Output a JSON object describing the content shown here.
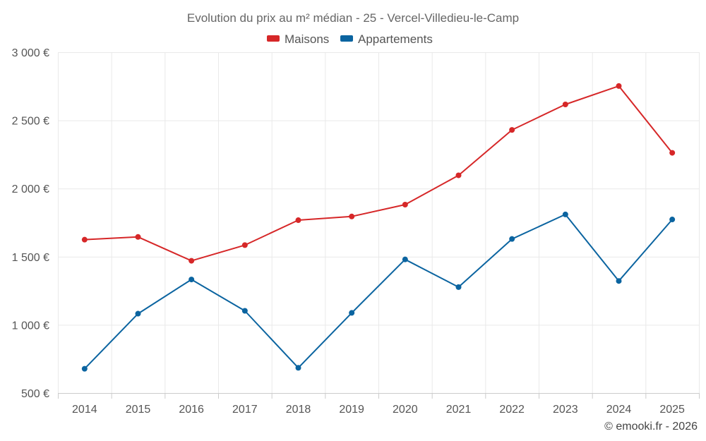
{
  "chart_data": {
    "type": "line",
    "title": "Evolution du prix au m² médian - 25 - Vercel-Villedieu-le-Camp",
    "categories": [
      "2014",
      "2015",
      "2016",
      "2017",
      "2018",
      "2019",
      "2020",
      "2021",
      "2022",
      "2023",
      "2024",
      "2025"
    ],
    "series": [
      {
        "name": "Maisons",
        "color": "#d62728",
        "values": [
          1625,
          1645,
          1470,
          1585,
          1768,
          1795,
          1882,
          2097,
          2430,
          2617,
          2752,
          2262
        ]
      },
      {
        "name": "Appartements",
        "color": "#0b64a0",
        "values": [
          678,
          1082,
          1333,
          1103,
          685,
          1088,
          1480,
          1277,
          1630,
          1810,
          1322,
          1773
        ]
      }
    ],
    "ylim": [
      500,
      3000
    ],
    "yticks": [
      500,
      1000,
      1500,
      2000,
      2500,
      3000
    ],
    "ytick_labels": [
      "500 €",
      "1 000 €",
      "1 500 €",
      "2 000 €",
      "2 500 €",
      "3 000 €"
    ],
    "xlabel": "",
    "ylabel": "",
    "legend": "top-center",
    "grid": true
  },
  "credit": "© emooki.fr - 2026"
}
